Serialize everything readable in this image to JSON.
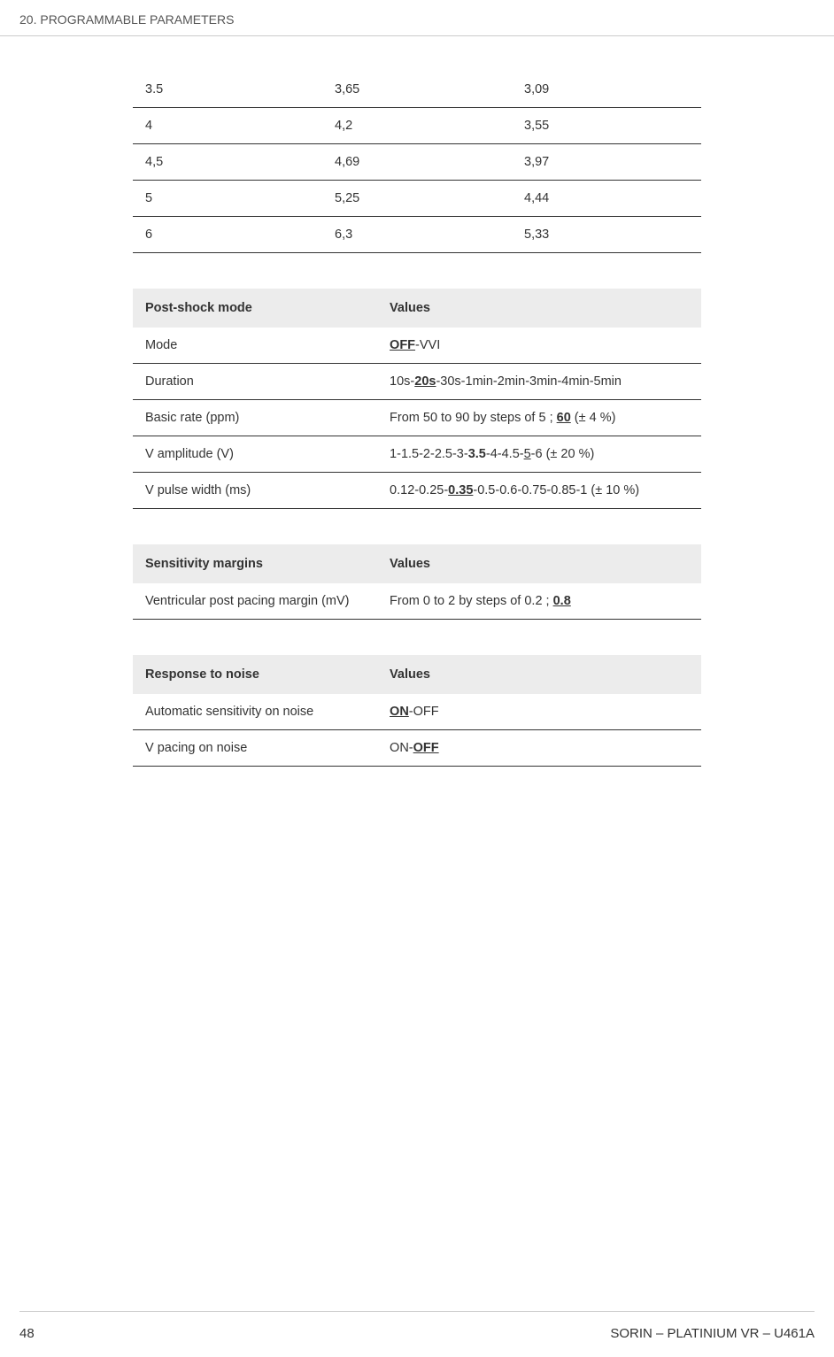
{
  "header": {
    "section": "20.  PROGRAMMABLE PARAMETERS"
  },
  "table1": {
    "rows": [
      [
        "3.5",
        "3,65",
        "3,09"
      ],
      [
        "4",
        "4,2",
        "3,55"
      ],
      [
        "4,5",
        "4,69",
        "3,97"
      ],
      [
        "5",
        "5,25",
        "4,44"
      ],
      [
        "6",
        "6,3",
        "5,33"
      ]
    ]
  },
  "table2": {
    "header": [
      "Post-shock mode",
      "Values"
    ],
    "rows": [
      {
        "label": "Mode",
        "segments": [
          {
            "text": "OFF",
            "class": "bu"
          },
          {
            "text": "-VVI"
          }
        ]
      },
      {
        "label": "Duration",
        "segments": [
          {
            "text": "10s-"
          },
          {
            "text": "20s",
            "class": "bu"
          },
          {
            "text": "-30s-1min-2min-3min-4min-5min"
          }
        ]
      },
      {
        "label": "Basic rate (ppm)",
        "segments": [
          {
            "text": "From 50 to 90 by steps of 5 ; "
          },
          {
            "text": "60",
            "class": "bu"
          },
          {
            "text": " (± 4 %)"
          }
        ]
      },
      {
        "label": "V amplitude (V)",
        "segments": [
          {
            "text": "1-1.5-2-2.5-3-"
          },
          {
            "text": "3.5",
            "class": "b"
          },
          {
            "text": "-4-4.5-"
          },
          {
            "text": "5",
            "class": "u"
          },
          {
            "text": "-6 (± 20 %)"
          }
        ]
      },
      {
        "label": "V pulse width (ms)",
        "segments": [
          {
            "text": "0.12-0.25-"
          },
          {
            "text": "0.35",
            "class": "bu"
          },
          {
            "text": "-0.5-0.6-0.75-0.85-1 (± 10 %)"
          }
        ]
      }
    ]
  },
  "table3": {
    "header": [
      "Sensitivity margins",
      "Values"
    ],
    "rows": [
      {
        "label": "Ventricular post pacing margin (mV)",
        "segments": [
          {
            "text": "From 0 to 2 by steps of 0.2 ; "
          },
          {
            "text": "0.8",
            "class": "bu"
          }
        ]
      }
    ]
  },
  "table4": {
    "header": [
      "Response to noise",
      "Values"
    ],
    "rows": [
      {
        "label": "Automatic sensitivity on noise",
        "segments": [
          {
            "text": "ON",
            "class": "bu"
          },
          {
            "text": "-OFF"
          }
        ]
      },
      {
        "label": "V pacing on noise",
        "segments": [
          {
            "text": "ON-"
          },
          {
            "text": "OFF",
            "class": "bu"
          }
        ]
      }
    ]
  },
  "footer": {
    "page": "48",
    "product": "SORIN – PLATINIUM VR – U461A"
  }
}
